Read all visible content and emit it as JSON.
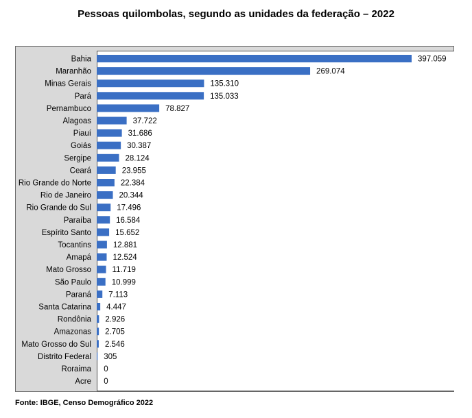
{
  "chart_data": {
    "type": "bar",
    "orientation": "horizontal",
    "title": "Pessoas quilombolas, segundo as unidades da federação – 2022",
    "categories": [
      "Bahia",
      "Maranhão",
      "Minas Gerais",
      "Pará",
      "Pernambuco",
      "Alagoas",
      "Piauí",
      "Goiás",
      "Sergipe",
      "Ceará",
      "Rio Grande do Norte",
      "Rio de Janeiro",
      "Rio Grande do Sul",
      "Paraíba",
      "Espírito Santo",
      "Tocantins",
      "Amapá",
      "Mato Grosso",
      "São Paulo",
      "Paraná",
      "Santa Catarina",
      "Rondônia",
      "Amazonas",
      "Mato Grosso do Sul",
      "Distrito Federal",
      "Roraima",
      "Acre"
    ],
    "values": [
      397059,
      269074,
      135310,
      135033,
      78827,
      37722,
      31686,
      30387,
      28124,
      23955,
      22384,
      20344,
      17496,
      16584,
      15652,
      12881,
      12524,
      11719,
      10999,
      7113,
      4447,
      2926,
      2705,
      2546,
      305,
      0,
      0
    ],
    "data_labels": [
      "397.059",
      "269.074",
      "135.310",
      "135.033",
      "78.827",
      "37.722",
      "31.686",
      "30.387",
      "28.124",
      "23.955",
      "22.384",
      "20.344",
      "17.496",
      "16.584",
      "15.652",
      "12.881",
      "12.524",
      "11.719",
      "10.999",
      "7.113",
      "4.447",
      "2.926",
      "2.705",
      "2.546",
      "305",
      "0",
      "0"
    ],
    "bar_color": "#3a6fc4",
    "xlim": [
      0,
      400000
    ],
    "grid": false,
    "legend": "none"
  },
  "source": "Fonte: IBGE, Censo Demográfico 2022"
}
